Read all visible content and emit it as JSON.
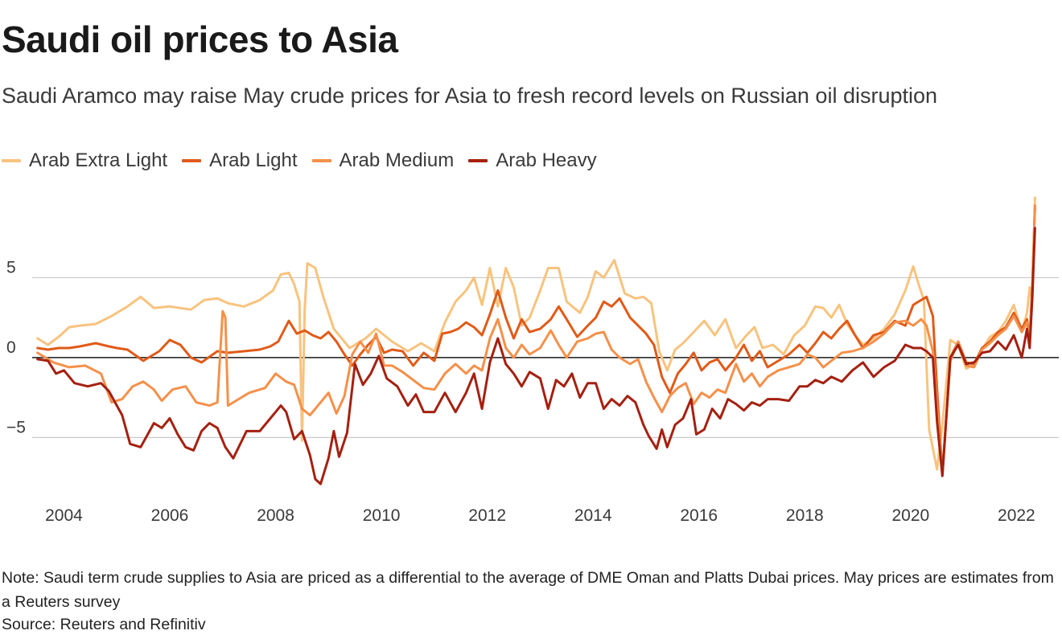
{
  "header": {
    "title": "Saudi oil prices to Asia",
    "subtitle": "Saudi Aramco may raise May crude prices for Asia to fresh record levels on Russian oil disruption"
  },
  "footer": {
    "note": "Note: Saudi term crude supplies to Asia are priced as a differential to the average of DME Oman and Platts Dubai prices. May prices are estimates from a Reuters survey",
    "source": "Source: Reuters and Refinitiv"
  },
  "chart_data": {
    "type": "line",
    "title": "Saudi oil prices to Asia",
    "xlabel": "",
    "ylabel": "",
    "xlim": [
      2003.4,
      2022.8
    ],
    "ylim": [
      -8.6,
      10.2
    ],
    "grid": true,
    "legend": "top-left",
    "x_ticks": [
      2004,
      2006,
      2008,
      2010,
      2012,
      2014,
      2016,
      2018,
      2020,
      2022
    ],
    "x_tick_labels": [
      "2004",
      "2006",
      "2008",
      "2010",
      "2012",
      "2014",
      "2016",
      "2018",
      "2020",
      "2022"
    ],
    "y_ticks": [
      -5,
      0,
      5
    ],
    "y_tick_labels": [
      "−5",
      "0",
      "5"
    ],
    "series": [
      {
        "name": "Arab Extra Light",
        "color": "#f8c37e",
        "x": [
          2003.5,
          2003.7,
          2003.9,
          2004.1,
          2004.3,
          2004.6,
          2004.9,
          2005.2,
          2005.45,
          2005.7,
          2006.0,
          2006.4,
          2006.65,
          2006.9,
          2007.1,
          2007.4,
          2007.7,
          2007.95,
          2008.1,
          2008.25,
          2008.35,
          2008.45,
          2008.5,
          2008.55,
          2008.6,
          2008.75,
          2008.9,
          2009.1,
          2009.4,
          2009.7,
          2009.9,
          2010.2,
          2010.5,
          2010.75,
          2011.0,
          2011.2,
          2011.4,
          2011.6,
          2011.75,
          2011.9,
          2012.05,
          2012.2,
          2012.35,
          2012.5,
          2012.65,
          2012.8,
          2013.0,
          2013.15,
          2013.35,
          2013.5,
          2013.75,
          2013.9,
          2014.05,
          2014.2,
          2014.4,
          2014.6,
          2014.8,
          2014.95,
          2015.1,
          2015.25,
          2015.4,
          2015.55,
          2015.7,
          2015.9,
          2016.1,
          2016.3,
          2016.5,
          2016.7,
          2016.9,
          2017.05,
          2017.2,
          2017.4,
          2017.6,
          2017.8,
          2018.0,
          2018.2,
          2018.35,
          2018.5,
          2018.65,
          2018.8,
          2018.95,
          2019.1,
          2019.3,
          2019.5,
          2019.7,
          2019.9,
          2020.05,
          2020.15,
          2020.25,
          2020.35,
          2020.5,
          2020.6,
          2020.75,
          2020.9,
          2021.05,
          2021.2,
          2021.35,
          2021.5,
          2021.65,
          2021.8,
          2021.95,
          2022.1,
          2022.2,
          2022.25,
          2022.3,
          2022.35
        ],
        "values": [
          1.2,
          0.8,
          1.3,
          1.9,
          2.0,
          2.1,
          2.6,
          3.2,
          3.8,
          3.1,
          3.2,
          3.0,
          3.6,
          3.7,
          3.4,
          3.2,
          3.6,
          4.2,
          5.2,
          5.3,
          4.6,
          3.5,
          -5.2,
          3.0,
          5.9,
          5.6,
          3.8,
          1.8,
          0.6,
          1.2,
          1.8,
          1.0,
          0.4,
          0.9,
          0.4,
          2.2,
          3.5,
          4.2,
          5.0,
          3.3,
          5.6,
          3.2,
          5.6,
          4.4,
          2.0,
          2.5,
          4.2,
          5.6,
          5.6,
          3.5,
          2.8,
          3.8,
          5.4,
          5.0,
          6.1,
          4.0,
          3.7,
          3.8,
          3.4,
          0.4,
          -0.8,
          0.5,
          0.9,
          1.6,
          2.3,
          1.4,
          2.4,
          0.6,
          1.4,
          1.9,
          0.6,
          0.8,
          0.2,
          1.4,
          2.0,
          3.2,
          3.1,
          2.5,
          3.3,
          2.1,
          1.4,
          0.8,
          1.2,
          1.8,
          2.7,
          4.2,
          5.7,
          4.6,
          3.6,
          -4.5,
          -7.0,
          -4.2,
          1.1,
          0.8,
          -0.7,
          -0.4,
          0.5,
          1.3,
          1.6,
          2.3,
          3.3,
          1.6,
          2.8,
          4.4,
          3.5,
          10.0
        ]
      },
      {
        "name": "Arab Light",
        "color": "#e15a18",
        "x": [
          2003.5,
          2003.7,
          2003.9,
          2004.1,
          2004.3,
          2004.6,
          2004.85,
          2005.0,
          2005.2,
          2005.5,
          2005.8,
          2006.0,
          2006.2,
          2006.4,
          2006.6,
          2006.9,
          2007.1,
          2007.4,
          2007.7,
          2007.9,
          2008.05,
          2008.25,
          2008.4,
          2008.55,
          2008.7,
          2008.85,
          2009.0,
          2009.15,
          2009.3,
          2009.45,
          2009.6,
          2009.75,
          2009.9,
          2010.05,
          2010.2,
          2010.4,
          2010.6,
          2010.8,
          2011.0,
          2011.15,
          2011.3,
          2011.45,
          2011.6,
          2011.75,
          2011.9,
          2012.05,
          2012.2,
          2012.35,
          2012.5,
          2012.65,
          2012.8,
          2013.0,
          2013.2,
          2013.35,
          2013.5,
          2013.7,
          2013.9,
          2014.05,
          2014.2,
          2014.35,
          2014.5,
          2014.7,
          2014.85,
          2015.0,
          2015.15,
          2015.3,
          2015.45,
          2015.6,
          2015.75,
          2015.9,
          2016.05,
          2016.2,
          2016.35,
          2016.5,
          2016.7,
          2016.85,
          2017.0,
          2017.15,
          2017.3,
          2017.5,
          2017.7,
          2017.9,
          2018.05,
          2018.2,
          2018.35,
          2018.5,
          2018.65,
          2018.8,
          2018.95,
          2019.1,
          2019.3,
          2019.5,
          2019.7,
          2019.9,
          2020.05,
          2020.2,
          2020.3,
          2020.42,
          2020.5,
          2020.6,
          2020.75,
          2020.9,
          2021.05,
          2021.2,
          2021.35,
          2021.5,
          2021.65,
          2021.8,
          2021.95,
          2022.1,
          2022.2,
          2022.25,
          2022.3,
          2022.35
        ],
        "values": [
          0.6,
          0.5,
          0.6,
          0.6,
          0.7,
          0.9,
          0.7,
          0.6,
          0.5,
          -0.2,
          0.4,
          1.1,
          0.8,
          0.0,
          -0.3,
          0.4,
          0.3,
          0.4,
          0.5,
          0.7,
          1.0,
          2.3,
          1.5,
          1.7,
          1.4,
          1.2,
          1.6,
          1.0,
          0.2,
          -0.5,
          0.2,
          0.8,
          1.3,
          0.3,
          0.5,
          0.4,
          -0.5,
          0.3,
          -0.2,
          1.5,
          1.6,
          1.8,
          2.2,
          1.9,
          1.4,
          2.7,
          4.2,
          2.5,
          1.2,
          2.4,
          1.6,
          1.8,
          2.4,
          3.2,
          2.4,
          1.3,
          2.0,
          2.5,
          3.5,
          3.2,
          3.7,
          2.5,
          2.0,
          1.5,
          0.8,
          -1.2,
          -2.2,
          -1.0,
          -0.4,
          0.3,
          -0.8,
          -0.3,
          -0.1,
          -0.8,
          0.0,
          0.8,
          -0.2,
          0.4,
          -0.6,
          -0.2,
          0.2,
          0.8,
          0.3,
          0.9,
          1.6,
          1.2,
          1.8,
          2.3,
          1.4,
          0.6,
          1.4,
          1.6,
          2.3,
          2.0,
          3.3,
          3.6,
          3.8,
          2.6,
          -2.0,
          -7.3,
          0.0,
          1.0,
          -0.3,
          -0.4,
          0.6,
          1.0,
          1.6,
          1.9,
          2.8,
          1.8,
          2.4,
          1.2,
          4.5,
          9.5
        ]
      },
      {
        "name": "Arab Medium",
        "color": "#f5904a",
        "x": [
          2003.5,
          2003.8,
          2004.1,
          2004.4,
          2004.7,
          2004.9,
          2005.1,
          2005.3,
          2005.5,
          2005.7,
          2005.85,
          2006.05,
          2006.3,
          2006.5,
          2006.75,
          2006.9,
          2007.0,
          2007.05,
          2007.1,
          2007.35,
          2007.5,
          2007.8,
          2008.0,
          2008.2,
          2008.35,
          2008.5,
          2008.65,
          2008.8,
          2009.0,
          2009.15,
          2009.3,
          2009.45,
          2009.6,
          2009.75,
          2009.9,
          2010.05,
          2010.2,
          2010.4,
          2010.6,
          2010.8,
          2011.0,
          2011.2,
          2011.4,
          2011.6,
          2011.75,
          2011.9,
          2012.05,
          2012.2,
          2012.35,
          2012.5,
          2012.65,
          2012.8,
          2013.0,
          2013.2,
          2013.35,
          2013.5,
          2013.7,
          2013.9,
          2014.05,
          2014.2,
          2014.35,
          2014.5,
          2014.7,
          2014.85,
          2015.0,
          2015.15,
          2015.3,
          2015.45,
          2015.6,
          2015.75,
          2015.9,
          2016.05,
          2016.2,
          2016.35,
          2016.5,
          2016.7,
          2016.85,
          2017.0,
          2017.15,
          2017.3,
          2017.5,
          2017.7,
          2017.9,
          2018.05,
          2018.2,
          2018.35,
          2018.5,
          2018.7,
          2018.9,
          2019.1,
          2019.3,
          2019.5,
          2019.7,
          2019.9,
          2020.05,
          2020.2,
          2020.3,
          2020.42,
          2020.5,
          2020.6,
          2020.75,
          2020.9,
          2021.05,
          2021.2,
          2021.35,
          2021.5,
          2021.65,
          2021.8,
          2021.95,
          2022.1,
          2022.2,
          2022.25,
          2022.3,
          2022.35
        ],
        "values": [
          0.3,
          -0.3,
          -0.6,
          -0.5,
          -1.0,
          -2.8,
          -2.6,
          -1.8,
          -1.5,
          -2.0,
          -2.7,
          -2.0,
          -1.8,
          -2.8,
          -3.0,
          -2.8,
          2.9,
          2.5,
          -3.0,
          -2.5,
          -2.2,
          -1.9,
          -1.0,
          -1.5,
          -1.7,
          -3.2,
          -3.6,
          -3.0,
          -2.2,
          -3.5,
          -2.4,
          0.2,
          1.0,
          0.3,
          1.5,
          -0.5,
          -0.5,
          -0.9,
          -1.4,
          -1.9,
          -2.0,
          -1.0,
          -0.4,
          -1.0,
          -0.5,
          -0.8,
          1.2,
          2.4,
          0.6,
          0.0,
          0.8,
          0.2,
          0.6,
          1.7,
          0.8,
          0.0,
          1.0,
          1.2,
          1.5,
          1.6,
          0.5,
          0.0,
          -0.4,
          -0.1,
          -1.5,
          -2.5,
          -3.4,
          -2.4,
          -1.9,
          -1.6,
          -2.9,
          -2.2,
          -2.5,
          -2.0,
          -2.2,
          -0.4,
          -1.5,
          -1.0,
          -1.8,
          -1.2,
          -0.8,
          -0.6,
          -0.4,
          0.2,
          0.0,
          -0.6,
          -0.2,
          0.3,
          0.4,
          0.6,
          1.0,
          1.5,
          2.2,
          2.3,
          2.0,
          2.4,
          2.0,
          0.4,
          -3.0,
          -7.3,
          -0.2,
          1.0,
          -0.5,
          -0.6,
          0.5,
          0.9,
          1.4,
          1.8,
          2.6,
          1.6,
          2.2,
          1.0,
          4.2,
          9.5
        ]
      },
      {
        "name": "Arab Heavy",
        "color": "#a52010",
        "x": [
          2003.5,
          2003.7,
          2003.85,
          2004.0,
          2004.2,
          2004.45,
          2004.7,
          2004.85,
          2005.0,
          2005.1,
          2005.25,
          2005.45,
          2005.7,
          2005.85,
          2006.0,
          2006.15,
          2006.3,
          2006.45,
          2006.6,
          2006.75,
          2006.9,
          2007.05,
          2007.2,
          2007.45,
          2007.7,
          2007.85,
          2008.0,
          2008.1,
          2008.2,
          2008.35,
          2008.5,
          2008.65,
          2008.75,
          2008.85,
          2009.0,
          2009.1,
          2009.2,
          2009.35,
          2009.5,
          2009.65,
          2009.8,
          2009.95,
          2010.1,
          2010.3,
          2010.5,
          2010.65,
          2010.8,
          2011.0,
          2011.2,
          2011.4,
          2011.6,
          2011.75,
          2011.9,
          2012.05,
          2012.2,
          2012.35,
          2012.5,
          2012.65,
          2012.8,
          2013.0,
          2013.15,
          2013.3,
          2013.45,
          2013.6,
          2013.75,
          2013.9,
          2014.05,
          2014.2,
          2014.35,
          2014.5,
          2014.65,
          2014.8,
          2014.95,
          2015.05,
          2015.2,
          2015.3,
          2015.4,
          2015.55,
          2015.7,
          2015.85,
          2015.95,
          2016.1,
          2016.25,
          2016.4,
          2016.55,
          2016.7,
          2016.85,
          2017.0,
          2017.15,
          2017.3,
          2017.5,
          2017.7,
          2017.9,
          2018.05,
          2018.2,
          2018.35,
          2018.5,
          2018.7,
          2018.9,
          2019.1,
          2019.3,
          2019.5,
          2019.7,
          2019.9,
          2020.05,
          2020.2,
          2020.3,
          2020.42,
          2020.5,
          2020.6,
          2020.75,
          2020.9,
          2021.05,
          2021.2,
          2021.35,
          2021.5,
          2021.65,
          2021.8,
          2021.95,
          2022.1,
          2022.2,
          2022.25,
          2022.3,
          2022.35
        ],
        "values": [
          -0.1,
          -0.2,
          -1.0,
          -0.8,
          -1.6,
          -1.8,
          -1.6,
          -2.1,
          -3.0,
          -3.6,
          -5.4,
          -5.6,
          -4.1,
          -4.4,
          -3.8,
          -4.8,
          -5.6,
          -5.8,
          -4.6,
          -4.1,
          -4.4,
          -5.6,
          -6.3,
          -4.6,
          -4.6,
          -4.0,
          -3.4,
          -3.0,
          -3.4,
          -5.1,
          -4.6,
          -6.1,
          -7.6,
          -7.9,
          -6.3,
          -4.6,
          -6.2,
          -4.7,
          -0.4,
          -1.7,
          -1.0,
          0.1,
          -1.3,
          -1.8,
          -3.0,
          -2.3,
          -3.4,
          -3.4,
          -2.2,
          -3.4,
          -2.2,
          -1.0,
          -3.2,
          -0.3,
          1.2,
          -0.4,
          -1.0,
          -1.8,
          -0.9,
          -1.3,
          -3.2,
          -1.4,
          -1.8,
          -1.0,
          -2.5,
          -1.6,
          -1.6,
          -3.2,
          -2.6,
          -3.0,
          -2.4,
          -2.8,
          -4.2,
          -4.9,
          -5.7,
          -4.5,
          -5.6,
          -4.2,
          -3.8,
          -2.6,
          -4.8,
          -4.5,
          -3.2,
          -3.8,
          -2.6,
          -2.9,
          -3.3,
          -2.8,
          -3.0,
          -2.6,
          -2.6,
          -2.7,
          -1.8,
          -1.8,
          -1.4,
          -1.6,
          -1.2,
          -1.5,
          -0.8,
          -0.3,
          -1.2,
          -0.6,
          -0.2,
          0.8,
          0.6,
          0.6,
          0.4,
          0.0,
          -4.0,
          -7.4,
          0.0,
          0.8,
          -0.4,
          -0.3,
          0.3,
          0.4,
          1.0,
          0.5,
          1.4,
          0.0,
          1.8,
          0.6,
          3.8,
          8.1
        ]
      }
    ]
  }
}
